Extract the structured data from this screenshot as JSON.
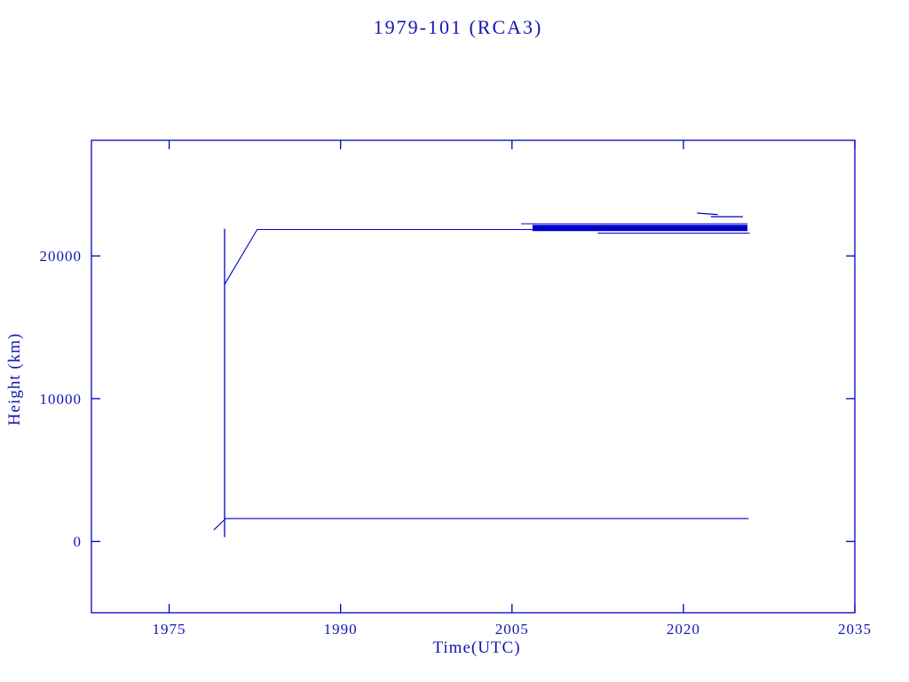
{
  "colors": {
    "line": "#0000CC",
    "frame": "#0000CC",
    "text": "#1414B8",
    "background": "#FFFFFF"
  },
  "chart_data": {
    "type": "line",
    "title": "1979-101 (RCA3)",
    "xlabel": "Time(UTC)",
    "ylabel": "Height (km)",
    "xlim": [
      1968.2,
      2035
    ],
    "ylim": [
      -5000,
      28100
    ],
    "x_ticks": [
      1975,
      1990,
      2005,
      2020,
      2035
    ],
    "y_ticks": [
      0,
      10000,
      20000
    ],
    "grid": false,
    "legend": null,
    "series": [
      {
        "name": "launch-insertion-vertical",
        "lw": 1.3,
        "points": [
          [
            1979.85,
            300
          ],
          [
            1979.85,
            21900
          ]
        ]
      },
      {
        "name": "apogee-height",
        "lw": 1.1,
        "points": [
          [
            1979.85,
            18000
          ],
          [
            1982.7,
            21850
          ],
          [
            2007.5,
            21850
          ]
        ]
      },
      {
        "name": "perigee-rise",
        "lw": 1.1,
        "points": [
          [
            1978.9,
            800
          ],
          [
            1979.95,
            1600
          ]
        ]
      },
      {
        "name": "perigee-height",
        "lw": 1.1,
        "points": [
          [
            1979.85,
            1600
          ],
          [
            2025.7,
            1600
          ]
        ]
      },
      {
        "name": "apogee-band-upper-thin",
        "lw": 1.1,
        "points": [
          [
            2005.8,
            22250
          ],
          [
            2025.6,
            22250
          ]
        ]
      },
      {
        "name": "apogee-band-core",
        "lw": 7,
        "points": [
          [
            2006.8,
            21950
          ],
          [
            2025.6,
            21950
          ]
        ]
      },
      {
        "name": "apogee-band-lower-thin",
        "lw": 1.1,
        "points": [
          [
            2012.5,
            21600
          ],
          [
            2025.8,
            21600
          ]
        ]
      },
      {
        "name": "apogee-high-dash-1",
        "lw": 1.3,
        "points": [
          [
            2021.2,
            23000
          ],
          [
            2023.0,
            22900
          ]
        ]
      },
      {
        "name": "apogee-high-dash-2",
        "lw": 1.3,
        "points": [
          [
            2022.4,
            22750
          ],
          [
            2025.2,
            22750
          ]
        ]
      }
    ]
  }
}
